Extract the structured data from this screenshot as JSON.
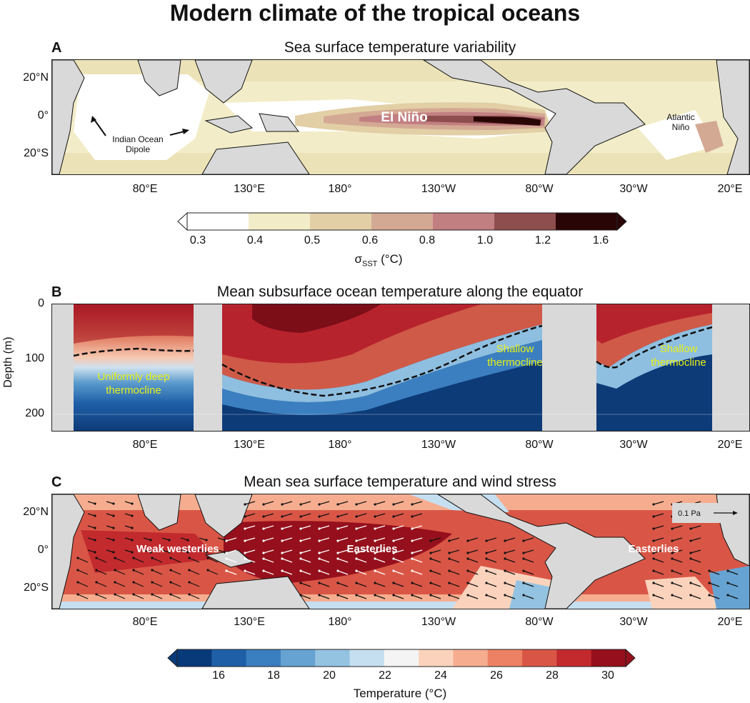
{
  "title": "Modern climate of the tropical oceans",
  "panels": {
    "a": {
      "letter": "A",
      "title": "Sea surface temperature variability",
      "yticks": [
        "20°N",
        "0°",
        "20°S"
      ],
      "xticks": [
        "80°E",
        "130°E",
        "180°",
        "130°W",
        "80°W",
        "30°W",
        "20°E"
      ],
      "annotations": {
        "el_nino": "El Niño",
        "iod_line1": "Indian Ocean",
        "iod_line2": "Dipole",
        "atl_line1": "Atlantic",
        "atl_line2": "Niño"
      },
      "colorbar": {
        "ticks": [
          "0.3",
          "0.4",
          "0.5",
          "0.6",
          "0.8",
          "1.0",
          "1.2",
          "1.6"
        ],
        "label_main": "σ",
        "label_sub": "SST",
        "label_unit": " (°C)",
        "colors": [
          "#ffffff",
          "#f2edc8",
          "#e2cfa6",
          "#d4a994",
          "#c27f82",
          "#8e4e4e",
          "#2a0505"
        ]
      }
    },
    "b": {
      "letter": "B",
      "title": "Mean subsurface ocean temperature along the equator",
      "ylabel": "Depth (m)",
      "yticks": [
        "0",
        "100",
        "200"
      ],
      "xticks": [
        "80°E",
        "130°E",
        "180°",
        "130°W",
        "80°W",
        "30°W",
        "20°E"
      ],
      "annotations": {
        "io_line1": "Uniformly deep",
        "io_line2": "thermocline",
        "pac_line1": "Shallow",
        "pac_line2": "thermocline",
        "atl_line1": "Shallow",
        "atl_line2": "thermocline"
      },
      "annotation_color": "#e6f019"
    },
    "c": {
      "letter": "C",
      "title": "Mean sea surface temperature and wind stress",
      "yticks": [
        "20°N",
        "0°",
        "20°S"
      ],
      "xticks": [
        "80°E",
        "130°E",
        "180°",
        "130°W",
        "80°W",
        "30°W",
        "20°E"
      ],
      "annotations": {
        "io": "Weak westerlies",
        "pac": "Easterlies",
        "atl": "Easterlies",
        "scale": "0.1 Pa"
      },
      "colorbar": {
        "ticks": [
          "16",
          "18",
          "20",
          "22",
          "24",
          "26",
          "28",
          "30"
        ],
        "label": "Temperature (°C)",
        "colors": [
          "#083a7a",
          "#1f5fa8",
          "#3a7fbf",
          "#66a3d2",
          "#94c3e2",
          "#c6dff0",
          "#f4f4f4",
          "#fbd3bd",
          "#f6ad8f",
          "#ec8163",
          "#d95646",
          "#c22a2e",
          "#95101c"
        ]
      }
    }
  },
  "land_color": "#d9d9d9"
}
